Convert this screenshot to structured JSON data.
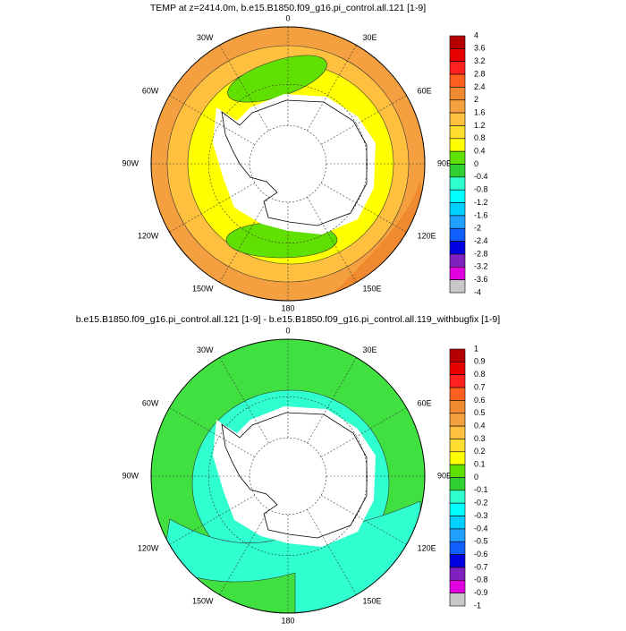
{
  "panels": [
    {
      "title": "TEMP at z=2414.0m, b.e15.B1850.f09_g16.pi_control.all.121 [1-9]",
      "longitude_labels": [
        "0",
        "30E",
        "60E",
        "90E",
        "120E",
        "150E",
        "180",
        "150W",
        "120W",
        "90W",
        "60W",
        "30W"
      ],
      "colorbar": {
        "levels": [
          4,
          3.6,
          3.2,
          2.8,
          2.4,
          2,
          1.6,
          1.2,
          0.8,
          0.4,
          0,
          -0.4,
          -0.8,
          -1.2,
          -1.6,
          -2,
          -2.4,
          -2.8,
          -3.2,
          -3.6,
          -4
        ],
        "colors": [
          "#b40000",
          "#e60000",
          "#ff2020",
          "#ff6020",
          "#f08a30",
          "#f5a040",
          "#ffc040",
          "#ffdd30",
          "#ffff00",
          "#60e000",
          "#30d030",
          "#30ffd0",
          "#00ffff",
          "#00d0ff",
          "#20a0ff",
          "#1060ff",
          "#0000e0",
          "#8020c0",
          "#e000e0",
          "#c8c8c8"
        ]
      }
    },
    {
      "title": "b.e15.B1850.f09_g16.pi_control.all.121 [1-9] - b.e15.B1850.f09_g16.pi_control.all.119_withbugfix [1-9]",
      "longitude_labels": [
        "0",
        "30E",
        "60E",
        "90E",
        "120E",
        "150E",
        "180",
        "150W",
        "120W",
        "90W",
        "60W",
        "30W"
      ],
      "colorbar": {
        "levels": [
          1,
          0.9,
          0.8,
          0.7,
          0.6,
          0.5,
          0.4,
          0.3,
          0.2,
          0.1,
          0,
          -0.1,
          -0.2,
          -0.3,
          -0.4,
          -0.5,
          -0.6,
          -0.7,
          -0.8,
          -0.9,
          -1
        ],
        "colors": [
          "#b40000",
          "#e60000",
          "#ff2020",
          "#ff6020",
          "#f08a30",
          "#f5a040",
          "#ffc040",
          "#ffdd30",
          "#ffff00",
          "#60e000",
          "#30d030",
          "#30ffd0",
          "#00ffff",
          "#00d0ff",
          "#20a0ff",
          "#1060ff",
          "#0000e0",
          "#8020c0",
          "#e000e0",
          "#c8c8c8"
        ]
      }
    }
  ]
}
